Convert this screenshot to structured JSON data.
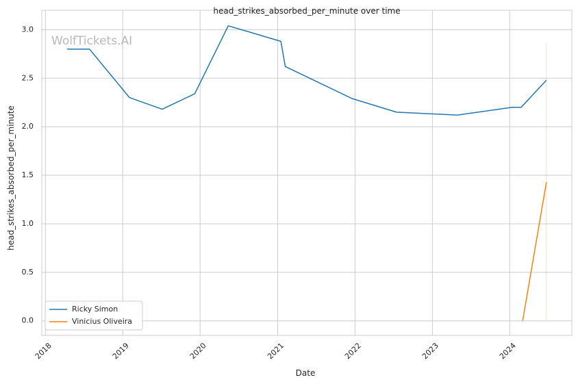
{
  "chart_data": {
    "type": "line",
    "title": "head_strikes_absorbed_per_minute over time",
    "xlabel": "Date",
    "ylabel": "head_strikes_absorbed_per_minute",
    "watermark": "WolfTickets.AI",
    "xlim": [
      "2017-12-15",
      "2024-10-20"
    ],
    "ylim": [
      -0.15,
      3.2
    ],
    "xticks": [
      "2018-01-01",
      "2019-01-01",
      "2020-01-01",
      "2021-01-01",
      "2022-01-01",
      "2023-01-01",
      "2024-01-01"
    ],
    "xtick_labels": [
      "2018",
      "2019",
      "2020",
      "2021",
      "2022",
      "2023",
      "2024"
    ],
    "yticks": [
      0.0,
      0.5,
      1.0,
      1.5,
      2.0,
      2.5,
      3.0
    ],
    "ytick_labels": [
      "0.0",
      "0.5",
      "1.0",
      "1.5",
      "2.0",
      "2.5",
      "3.0"
    ],
    "grid": true,
    "legend": "lower-left",
    "series": [
      {
        "name": "Ricky Simon",
        "color": "#1f77b4",
        "x": [
          "2018-04-14",
          "2018-07-28",
          "2019-02-02",
          "2019-07-06",
          "2019-12-07",
          "2020-05-13",
          "2021-01-16",
          "2021-02-06",
          "2021-12-18",
          "2022-07-16",
          "2023-04-29",
          "2024-01-13",
          "2024-02-24",
          "2024-06-22"
        ],
        "y": [
          2.8,
          2.8,
          2.3,
          2.18,
          2.34,
          3.04,
          2.88,
          2.62,
          2.29,
          2.15,
          2.12,
          2.2,
          2.2,
          2.48
        ]
      },
      {
        "name": "Vinicius Oliveira",
        "color": "#ff7f0e",
        "x": [
          "2024-03-02",
          "2024-06-22"
        ],
        "y": [
          0.0,
          1.43
        ]
      }
    ],
    "marker_line": {
      "x": "2024-06-22",
      "y_range": [
        0.0,
        2.86
      ],
      "color": "#ff7f0e"
    }
  }
}
